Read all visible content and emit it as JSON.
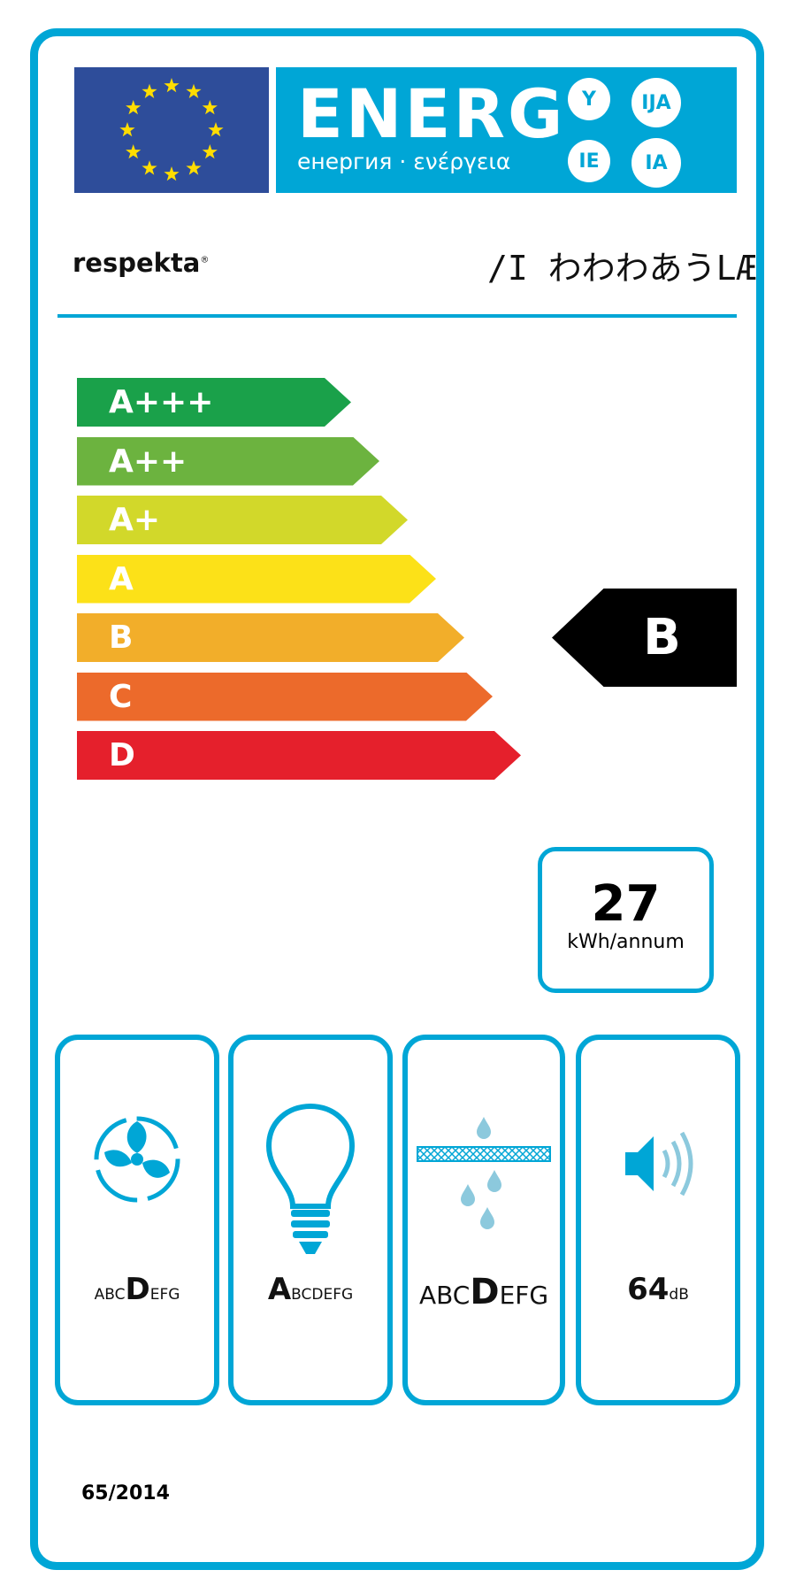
{
  "header": {
    "energy_title": "ENERG",
    "energy_subtitle": "енергия · ενέργεια",
    "language_badges": [
      "Y",
      "IJA",
      "IE",
      "IA"
    ],
    "brand": "respekta",
    "brand_mark": "®",
    "model": "/I  わわわあうLÆ"
  },
  "scale": {
    "classes": [
      {
        "label": "A+++",
        "color": "#1aa14a"
      },
      {
        "label": "A++",
        "color": "#6cb33f"
      },
      {
        "label": "A+",
        "color": "#d2d82a"
      },
      {
        "label": "A",
        "color": "#fce118"
      },
      {
        "label": "B",
        "color": "#f2ae2a"
      },
      {
        "label": "C",
        "color": "#ec6a2b"
      },
      {
        "label": "D",
        "color": "#e5202c"
      }
    ],
    "rating": "B"
  },
  "consumption": {
    "value": "27",
    "unit": "kWh/annum"
  },
  "panels": {
    "fan": {
      "small_before": "ABC",
      "big": "D",
      "small_after": "EFG"
    },
    "light": {
      "big": "A",
      "small_after": "BCDEFG"
    },
    "filter": {
      "small_before": "ABC",
      "big": "D",
      "small_after": "EFG"
    },
    "noise": {
      "value": "64",
      "unit": "dB"
    }
  },
  "regulation": "65/2014",
  "colors": {
    "accent": "#00a6d6",
    "eu_blue": "#2e4d9a",
    "eu_star": "#ffdd00"
  }
}
